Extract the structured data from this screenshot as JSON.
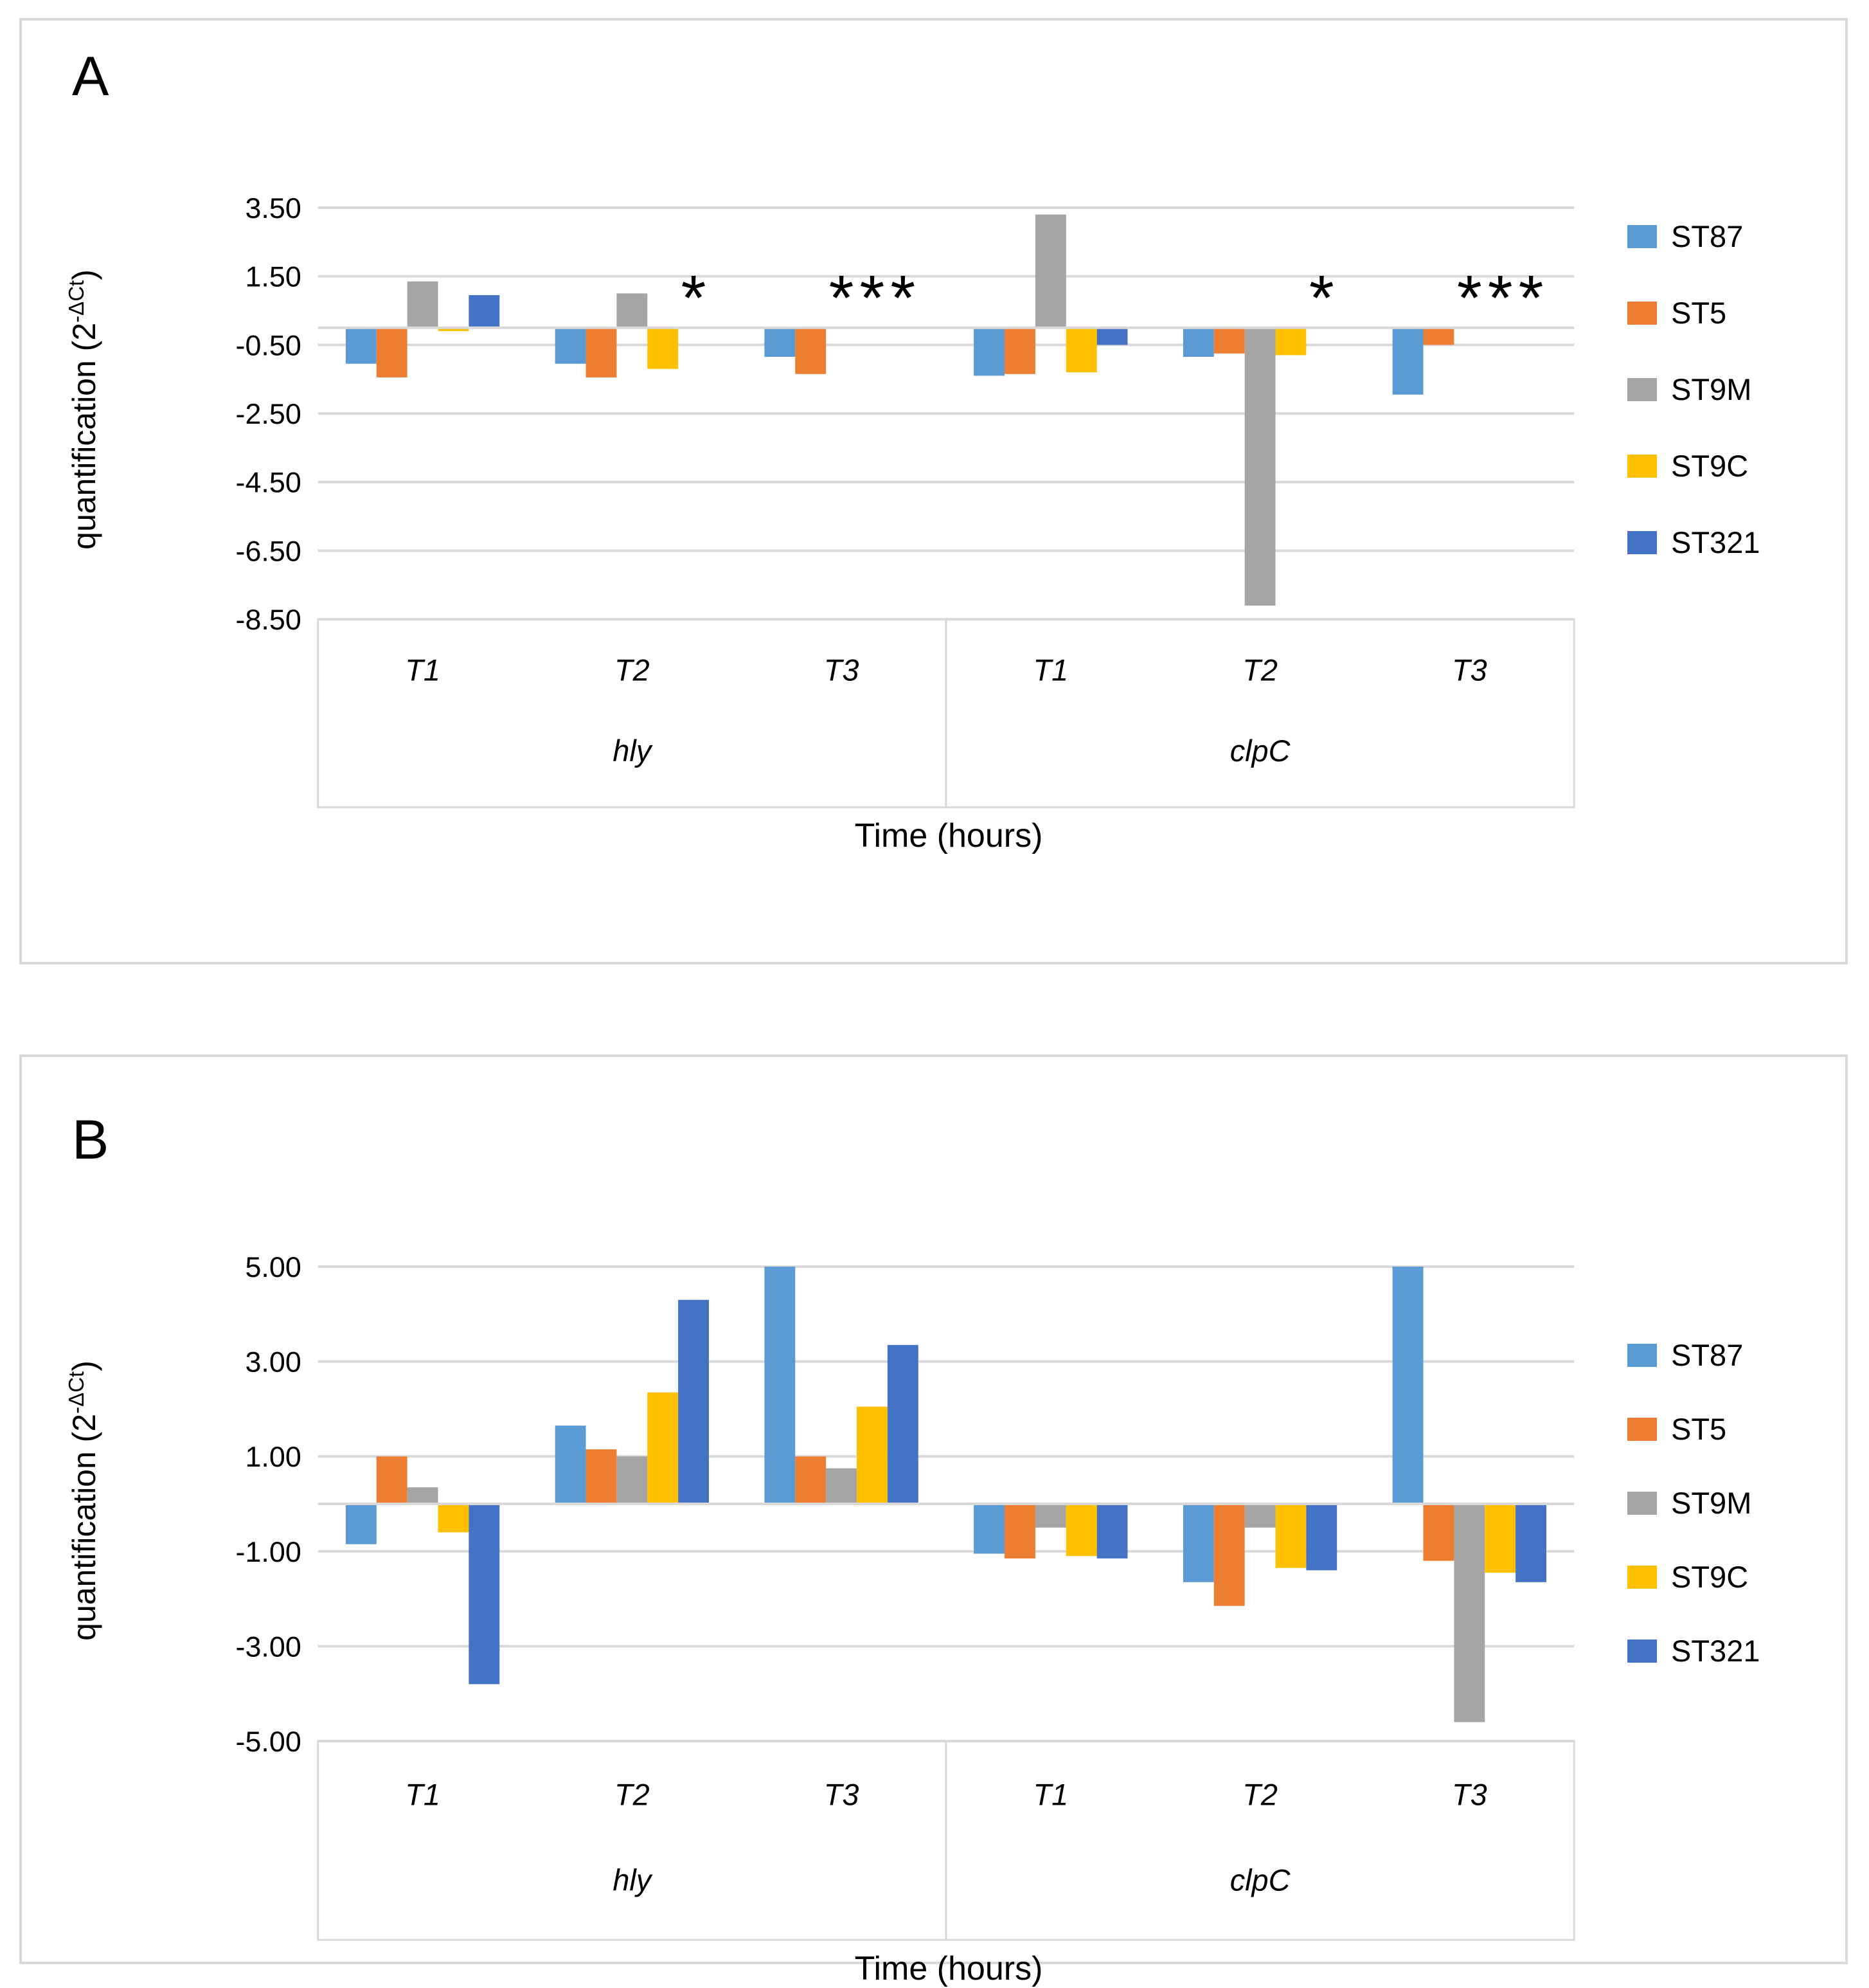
{
  "figure_title": "",
  "chart_data": [
    {
      "type": "bar",
      "panel_label": "A",
      "ylabel_parts": {
        "base": "quantification (2",
        "superscript": "-ΔCt",
        "suffix": ")"
      },
      "xlabel": "Time (hours)",
      "categories": [
        "T1",
        "T2",
        "T3",
        "T1",
        "T2",
        "T3"
      ],
      "group_labels": [
        "hly",
        "clpC"
      ],
      "yticks": [
        {
          "value": 3.5,
          "label": "3.50"
        },
        {
          "value": 1.5,
          "label": "1.50"
        },
        {
          "value": -0.5,
          "label": "-0.50"
        },
        {
          "value": -2.5,
          "label": "-2.50"
        },
        {
          "value": -4.5,
          "label": "-4.50"
        },
        {
          "value": -6.5,
          "label": "-6.50"
        },
        {
          "value": -8.5,
          "label": "-8.50"
        }
      ],
      "ylim": [
        -8.5,
        4.6
      ],
      "grid": true,
      "legend_position": "right",
      "significance_marker": "*",
      "missing_values_shown_as_marker": true,
      "series": [
        {
          "name": "ST87",
          "color": "#5B9BD5",
          "values": [
            -1.05,
            -1.05,
            -0.85,
            -1.4,
            -0.85,
            -1.95
          ]
        },
        {
          "name": "ST5",
          "color": "#ED7D31",
          "values": [
            -1.45,
            -1.45,
            -1.35,
            -1.35,
            -0.75,
            -0.5
          ]
        },
        {
          "name": "ST9M",
          "color": "#A5A5A5",
          "values": [
            1.35,
            1.0,
            null,
            3.3,
            -8.1,
            null
          ]
        },
        {
          "name": "ST9C",
          "color": "#FFC000",
          "values": [
            -0.1,
            -1.2,
            null,
            -1.3,
            -0.8,
            null
          ]
        },
        {
          "name": "ST321",
          "color": "#4472C4",
          "values": [
            0.95,
            null,
            null,
            -0.5,
            null,
            null
          ]
        }
      ]
    },
    {
      "type": "bar",
      "panel_label": "B",
      "ylabel_parts": {
        "base": "quantification (2",
        "superscript": "-ΔCt",
        "suffix": ")"
      },
      "xlabel": "Time (hours)",
      "categories": [
        "T1",
        "T2",
        "T3",
        "T1",
        "T2",
        "T3"
      ],
      "group_labels": [
        "hly",
        "clpC"
      ],
      "yticks": [
        {
          "value": 5,
          "label": "5.00"
        },
        {
          "value": 3,
          "label": "3.00"
        },
        {
          "value": 1,
          "label": "1.00"
        },
        {
          "value": -1,
          "label": "-1.00"
        },
        {
          "value": -3,
          "label": "-3.00"
        },
        {
          "value": -5,
          "label": "-5.00"
        }
      ],
      "ylim": [
        -5.0,
        5.3
      ],
      "grid": true,
      "legend_position": "right",
      "significance_marker": "*",
      "missing_values_shown_as_marker": false,
      "series": [
        {
          "name": "ST87",
          "color": "#5B9BD5",
          "values": [
            -0.85,
            1.65,
            5.0,
            -1.05,
            -1.65,
            5.0
          ]
        },
        {
          "name": "ST5",
          "color": "#ED7D31",
          "values": [
            1.0,
            1.15,
            1.0,
            -1.15,
            -2.15,
            -1.2
          ]
        },
        {
          "name": "ST9M",
          "color": "#A5A5A5",
          "values": [
            0.35,
            1.0,
            0.75,
            -0.5,
            -0.5,
            -4.6
          ]
        },
        {
          "name": "ST9C",
          "color": "#FFC000",
          "values": [
            -0.6,
            2.35,
            2.05,
            -1.1,
            -1.35,
            -1.45
          ]
        },
        {
          "name": "ST321",
          "color": "#4472C4",
          "values": [
            -3.8,
            4.3,
            3.35,
            -1.15,
            -1.4,
            -1.65
          ]
        }
      ]
    }
  ],
  "style": {
    "gridline_color": "#d9d9d9",
    "axis_line_color": "#d9d9d9",
    "table_border_color": "#d9d9d9",
    "panel_border_color": "#d9d9d9",
    "text_color": "#000000"
  }
}
